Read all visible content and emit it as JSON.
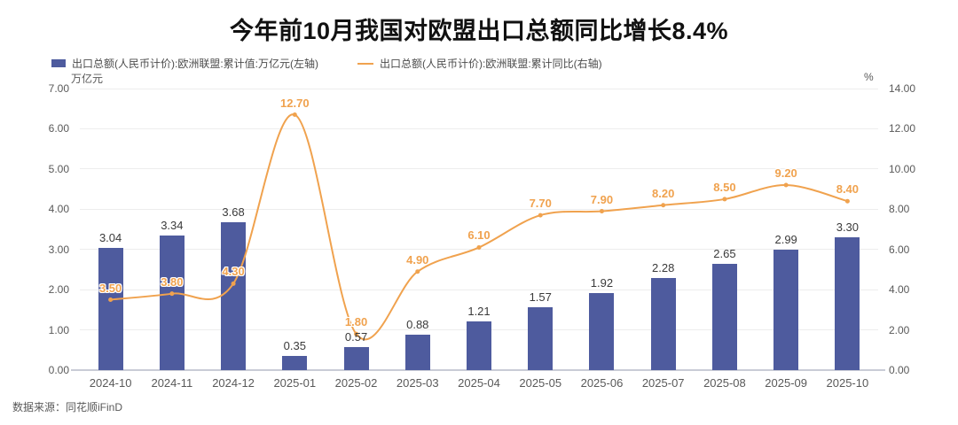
{
  "title": "今年前10月我国对欧盟出口总额同比增长8.4%",
  "source": "数据来源：同花顺iFinD",
  "legend": [
    {
      "label": "出口总额(人民币计价):欧洲联盟:累计值:万亿元(左轴)",
      "color": "#4e5b9e",
      "type": "bar"
    },
    {
      "label": "出口总额(人民币计价):欧洲联盟:累计同比(右轴)",
      "color": "#f0a24e",
      "type": "line"
    }
  ],
  "colors": {
    "bar": "#4e5b9e",
    "line": "#f0a24e",
    "title": "#111111",
    "axis_text": "#595959",
    "bar_label": "#3a3a3a",
    "grid": "#ededed",
    "axis_line": "#c9ccd6",
    "background": "#ffffff"
  },
  "chart_data": {
    "type": "bar+line",
    "title": "今年前10月我国对欧盟出口总额同比增长8.4%",
    "categories": [
      "2024-10",
      "2024-11",
      "2024-12",
      "2025-01",
      "2025-02",
      "2025-03",
      "2025-04",
      "2025-05",
      "2025-06",
      "2025-07",
      "2025-08",
      "2025-09",
      "2025-10"
    ],
    "series": [
      {
        "name": "出口总额(人民币计价):欧洲联盟:累计值:万亿元(左轴)",
        "type": "bar",
        "axis": "left",
        "color": "#4e5b9e",
        "values": [
          3.04,
          3.34,
          3.68,
          0.35,
          0.57,
          0.88,
          1.21,
          1.57,
          1.92,
          2.28,
          2.65,
          2.99,
          3.3
        ]
      },
      {
        "name": "出口总额(人民币计价):欧洲联盟:累计同比(右轴)",
        "type": "line",
        "axis": "right",
        "color": "#f0a24e",
        "values": [
          3.5,
          3.8,
          4.3,
          12.7,
          1.8,
          4.9,
          6.1,
          7.7,
          7.9,
          8.2,
          8.5,
          9.2,
          8.4
        ]
      }
    ],
    "left_axis": {
      "unit": "万亿元",
      "min": 0,
      "max": 7,
      "ticks": [
        "0.00",
        "1.00",
        "2.00",
        "3.00",
        "4.00",
        "5.00",
        "6.00",
        "7.00"
      ]
    },
    "right_axis": {
      "unit": "%",
      "min": 0,
      "max": 14,
      "ticks": [
        "0.00",
        "2.00",
        "4.00",
        "6.00",
        "8.00",
        "10.00",
        "12.00",
        "14.00"
      ]
    },
    "grid": true,
    "legend_position": "top-left"
  }
}
